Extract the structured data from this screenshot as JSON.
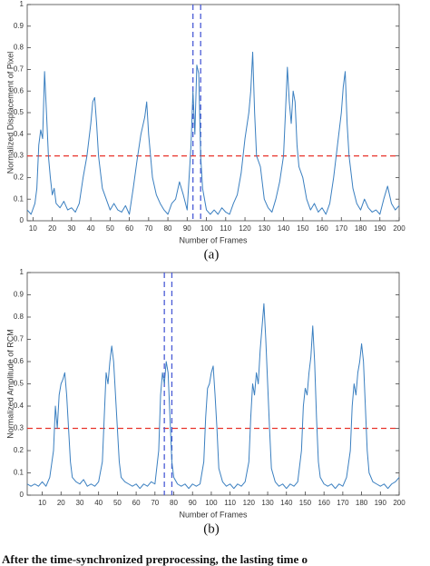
{
  "chart_data": [
    {
      "type": "line",
      "ylabel": "Normalized Displacement of Pixel",
      "xlabel": "Number of Frames",
      "label": "(a)",
      "xlim": [
        7,
        200
      ],
      "ylim": [
        0,
        1
      ],
      "xticks": [
        10,
        20,
        30,
        40,
        50,
        60,
        70,
        80,
        90,
        100,
        110,
        120,
        130,
        140,
        150,
        160,
        170,
        180,
        190,
        200
      ],
      "yticks": [
        0,
        0.1,
        0.2,
        0.3,
        0.4,
        0.5,
        0.6,
        0.7,
        0.8,
        0.9,
        1
      ],
      "x": [
        7,
        9,
        11,
        12,
        13,
        14,
        15,
        16,
        17,
        18,
        19,
        20,
        21,
        22,
        24,
        26,
        28,
        30,
        32,
        34,
        36,
        38,
        40,
        41,
        42,
        43,
        44,
        46,
        48,
        50,
        52,
        54,
        56,
        58,
        60,
        62,
        64,
        66,
        68,
        69,
        70,
        71,
        72,
        74,
        76,
        78,
        80,
        82,
        84,
        86,
        88,
        90,
        92,
        93,
        94,
        95,
        96,
        97,
        98,
        100,
        102,
        104,
        106,
        108,
        110,
        112,
        114,
        116,
        118,
        120,
        122,
        123,
        124,
        125,
        126,
        128,
        130,
        132,
        134,
        136,
        138,
        140,
        141,
        142,
        143,
        144,
        145,
        146,
        147,
        148,
        150,
        152,
        154,
        156,
        158,
        160,
        162,
        164,
        166,
        168,
        170,
        171,
        172,
        173,
        174,
        176,
        178,
        180,
        182,
        184,
        186,
        188,
        190,
        192,
        194,
        196,
        198,
        200
      ],
      "series": [
        {
          "color": "#3a7fc0",
          "values": [
            0.05,
            0.03,
            0.08,
            0.15,
            0.35,
            0.42,
            0.38,
            0.69,
            0.5,
            0.3,
            0.2,
            0.12,
            0.15,
            0.08,
            0.06,
            0.09,
            0.05,
            0.06,
            0.04,
            0.08,
            0.2,
            0.3,
            0.45,
            0.55,
            0.57,
            0.45,
            0.3,
            0.15,
            0.1,
            0.05,
            0.08,
            0.05,
            0.04,
            0.07,
            0.03,
            0.15,
            0.28,
            0.4,
            0.48,
            0.55,
            0.4,
            0.3,
            0.2,
            0.12,
            0.08,
            0.05,
            0.03,
            0.08,
            0.1,
            0.18,
            0.12,
            0.05,
            0.35,
            0.6,
            0.4,
            0.72,
            0.68,
            0.3,
            0.15,
            0.05,
            0.03,
            0.05,
            0.03,
            0.06,
            0.04,
            0.03,
            0.08,
            0.12,
            0.22,
            0.38,
            0.5,
            0.6,
            0.78,
            0.5,
            0.3,
            0.25,
            0.1,
            0.06,
            0.04,
            0.1,
            0.18,
            0.3,
            0.5,
            0.71,
            0.55,
            0.45,
            0.6,
            0.55,
            0.35,
            0.25,
            0.2,
            0.1,
            0.05,
            0.08,
            0.04,
            0.06,
            0.03,
            0.08,
            0.2,
            0.35,
            0.5,
            0.62,
            0.69,
            0.45,
            0.3,
            0.15,
            0.08,
            0.05,
            0.1,
            0.06,
            0.04,
            0.05,
            0.03,
            0.1,
            0.16,
            0.08,
            0.05,
            0.07
          ]
        }
      ],
      "threshold": 0.3,
      "threshold_color": "#e8332a",
      "vlines": [
        93,
        97
      ],
      "vline_color": "#4a5bd6"
    },
    {
      "type": "line",
      "ylabel": "Normalized Amplitude of RCM",
      "xlabel": "Number of Frames",
      "label": "(b)",
      "xlim": [
        2,
        200
      ],
      "ylim": [
        0,
        1
      ],
      "xticks": [
        10,
        20,
        30,
        40,
        50,
        60,
        70,
        80,
        90,
        100,
        110,
        120,
        130,
        140,
        150,
        160,
        170,
        180,
        190,
        200
      ],
      "yticks": [
        0,
        0.1,
        0.2,
        0.3,
        0.4,
        0.5,
        0.6,
        0.7,
        0.8,
        0.9,
        1
      ],
      "x": [
        2,
        4,
        6,
        8,
        10,
        12,
        14,
        16,
        17,
        18,
        19,
        20,
        21,
        22,
        23,
        24,
        25,
        26,
        28,
        30,
        32,
        34,
        36,
        38,
        40,
        42,
        43,
        44,
        45,
        46,
        47,
        48,
        49,
        50,
        51,
        52,
        54,
        56,
        58,
        60,
        62,
        64,
        66,
        68,
        70,
        72,
        73,
        74,
        75,
        76,
        77,
        78,
        79,
        80,
        82,
        84,
        86,
        88,
        90,
        92,
        94,
        96,
        97,
        98,
        99,
        100,
        101,
        102,
        103,
        104,
        106,
        108,
        110,
        112,
        114,
        116,
        118,
        120,
        121,
        122,
        123,
        124,
        125,
        126,
        128,
        129,
        130,
        131,
        132,
        134,
        136,
        138,
        140,
        142,
        144,
        146,
        148,
        149,
        150,
        151,
        152,
        153,
        154,
        155,
        156,
        157,
        158,
        160,
        162,
        164,
        166,
        168,
        170,
        172,
        174,
        175,
        176,
        177,
        178,
        179,
        180,
        181,
        182,
        183,
        184,
        186,
        188,
        190,
        192,
        194,
        196,
        198,
        200
      ],
      "series": [
        {
          "color": "#3a7fc0",
          "values": [
            0.05,
            0.04,
            0.05,
            0.04,
            0.06,
            0.04,
            0.08,
            0.2,
            0.4,
            0.3,
            0.45,
            0.5,
            0.52,
            0.55,
            0.45,
            0.3,
            0.15,
            0.08,
            0.06,
            0.05,
            0.07,
            0.04,
            0.05,
            0.04,
            0.06,
            0.15,
            0.35,
            0.55,
            0.5,
            0.6,
            0.67,
            0.6,
            0.45,
            0.3,
            0.15,
            0.08,
            0.06,
            0.05,
            0.04,
            0.05,
            0.03,
            0.05,
            0.04,
            0.06,
            0.05,
            0.2,
            0.45,
            0.55,
            0.5,
            0.6,
            0.55,
            0.35,
            0.15,
            0.08,
            0.05,
            0.04,
            0.05,
            0.03,
            0.05,
            0.04,
            0.05,
            0.15,
            0.35,
            0.48,
            0.5,
            0.55,
            0.58,
            0.45,
            0.3,
            0.12,
            0.06,
            0.04,
            0.05,
            0.03,
            0.05,
            0.04,
            0.06,
            0.15,
            0.35,
            0.5,
            0.45,
            0.55,
            0.5,
            0.65,
            0.86,
            0.7,
            0.5,
            0.3,
            0.12,
            0.06,
            0.04,
            0.05,
            0.03,
            0.05,
            0.04,
            0.06,
            0.2,
            0.4,
            0.48,
            0.45,
            0.55,
            0.62,
            0.76,
            0.6,
            0.35,
            0.15,
            0.08,
            0.05,
            0.04,
            0.05,
            0.03,
            0.05,
            0.04,
            0.08,
            0.2,
            0.4,
            0.5,
            0.45,
            0.55,
            0.6,
            0.68,
            0.6,
            0.4,
            0.2,
            0.1,
            0.06,
            0.05,
            0.04,
            0.05,
            0.03,
            0.05,
            0.06,
            0.08
          ]
        }
      ],
      "threshold": 0.3,
      "threshold_color": "#e8332a",
      "vlines": [
        75,
        79
      ],
      "vline_color": "#4a5bd6"
    }
  ],
  "caption": "After the time-synchronized preprocessing, the lasting time o"
}
